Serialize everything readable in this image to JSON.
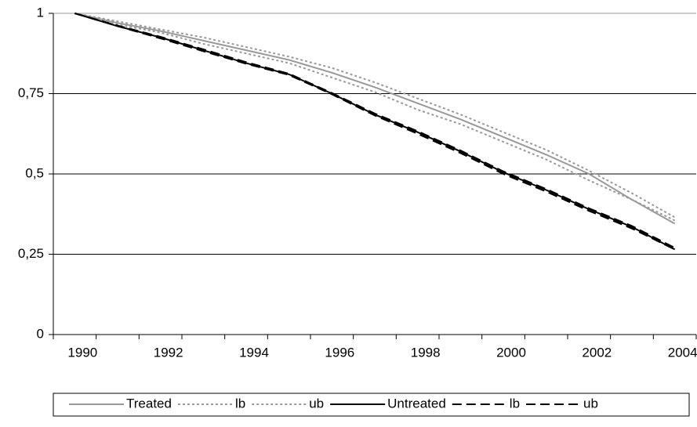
{
  "chart_data": {
    "type": "line",
    "categories": [
      "1990",
      null,
      "1992",
      null,
      "1994",
      null,
      "1996",
      null,
      "1998",
      null,
      "2000",
      null,
      "2002",
      null,
      "2004"
    ],
    "series": [
      {
        "name": "Treated",
        "color": "#999999",
        "dash": "solid",
        "values": [
          1,
          0.97,
          0.945,
          0.915,
          0.885,
          0.855,
          0.815,
          0.77,
          0.72,
          0.67,
          0.615,
          0.56,
          0.5,
          0.42,
          0.345
        ]
      },
      {
        "name": "lb",
        "color": "#999999",
        "dash": "dotted",
        "values": [
          1,
          0.965,
          0.94,
          0.905,
          0.875,
          0.845,
          0.8,
          0.755,
          0.7,
          0.655,
          0.6,
          0.545,
          0.48,
          0.42,
          0.355
        ]
      },
      {
        "name": "ub",
        "color": "#999999",
        "dash": "dotted",
        "values": [
          1,
          0.975,
          0.95,
          0.925,
          0.895,
          0.865,
          0.83,
          0.785,
          0.735,
          0.685,
          0.63,
          0.575,
          0.51,
          0.44,
          0.365
        ]
      },
      {
        "name": "Untreated",
        "color": "#000000",
        "dash": "solid",
        "values": [
          1,
          0.96,
          0.925,
          0.885,
          0.845,
          0.81,
          0.75,
          0.685,
          0.63,
          0.57,
          0.505,
          0.45,
          0.39,
          0.335,
          0.265
        ]
      },
      {
        "name": "lb",
        "color": "#000000",
        "dash": "dashed",
        "values": [
          1,
          0.96,
          0.922,
          0.882,
          0.843,
          0.808,
          0.748,
          0.682,
          0.625,
          0.565,
          0.5,
          0.445,
          0.385,
          0.33,
          0.265
        ]
      },
      {
        "name": "ub",
        "color": "#000000",
        "dash": "dashed",
        "values": [
          1,
          0.962,
          0.927,
          0.888,
          0.848,
          0.812,
          0.752,
          0.688,
          0.633,
          0.573,
          0.508,
          0.453,
          0.393,
          0.338,
          0.27
        ]
      }
    ],
    "ylim": [
      0,
      1
    ],
    "yticks": [
      0,
      {
        "value": 0.25,
        "label": "0,25"
      },
      {
        "value": 0.5,
        "label": "0,5"
      },
      {
        "value": 0.75,
        "label": "0,75"
      },
      1
    ],
    "grid": true,
    "legend": "bottom"
  }
}
